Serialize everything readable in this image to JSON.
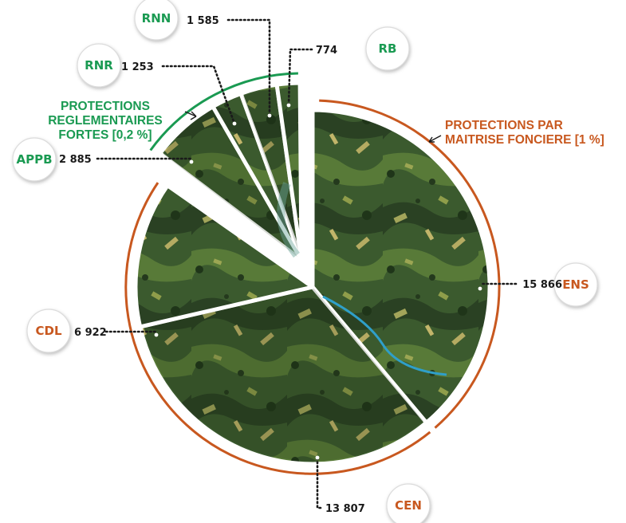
{
  "colors": {
    "green_accent": "#1a9a52",
    "orange_accent": "#c8581f",
    "dark_forest": "#2f4a2a",
    "mid_forest": "#4e6b34",
    "light_field": "#8c9a4e",
    "water": "#2f9fc9"
  },
  "chart_data": {
    "type": "pie",
    "title": "",
    "slices": [
      {
        "label": "ENS",
        "value": 15866,
        "value_text": "15 866",
        "group": "maitrise"
      },
      {
        "label": "CEN",
        "value": 13807,
        "value_text": "13 807",
        "group": "maitrise"
      },
      {
        "label": "CDL",
        "value": 6922,
        "value_text": "6 922",
        "group": "maitrise"
      },
      {
        "label": "APPB",
        "value": 2885,
        "value_text": "2 885",
        "group": "reglementaires"
      },
      {
        "label": "RNR",
        "value": 1253,
        "value_text": "1 253",
        "group": "reglementaires"
      },
      {
        "label": "RNN",
        "value": 1585,
        "value_text": "1 585",
        "group": "reglementaires"
      },
      {
        "label": "RB",
        "value": 774,
        "value_text": "774",
        "group": "reglementaires"
      }
    ],
    "groups": {
      "reglementaires": {
        "lines": [
          "PROTECTIONS",
          "REGLEMENTAIRES",
          "FORTES [0,2 %]"
        ],
        "color": "#1a9a52"
      },
      "maitrise": {
        "lines": [
          "PROTECTIONS PAR",
          "MAITRISE FONCIERE [1 %]"
        ],
        "color": "#c8581f"
      }
    }
  }
}
